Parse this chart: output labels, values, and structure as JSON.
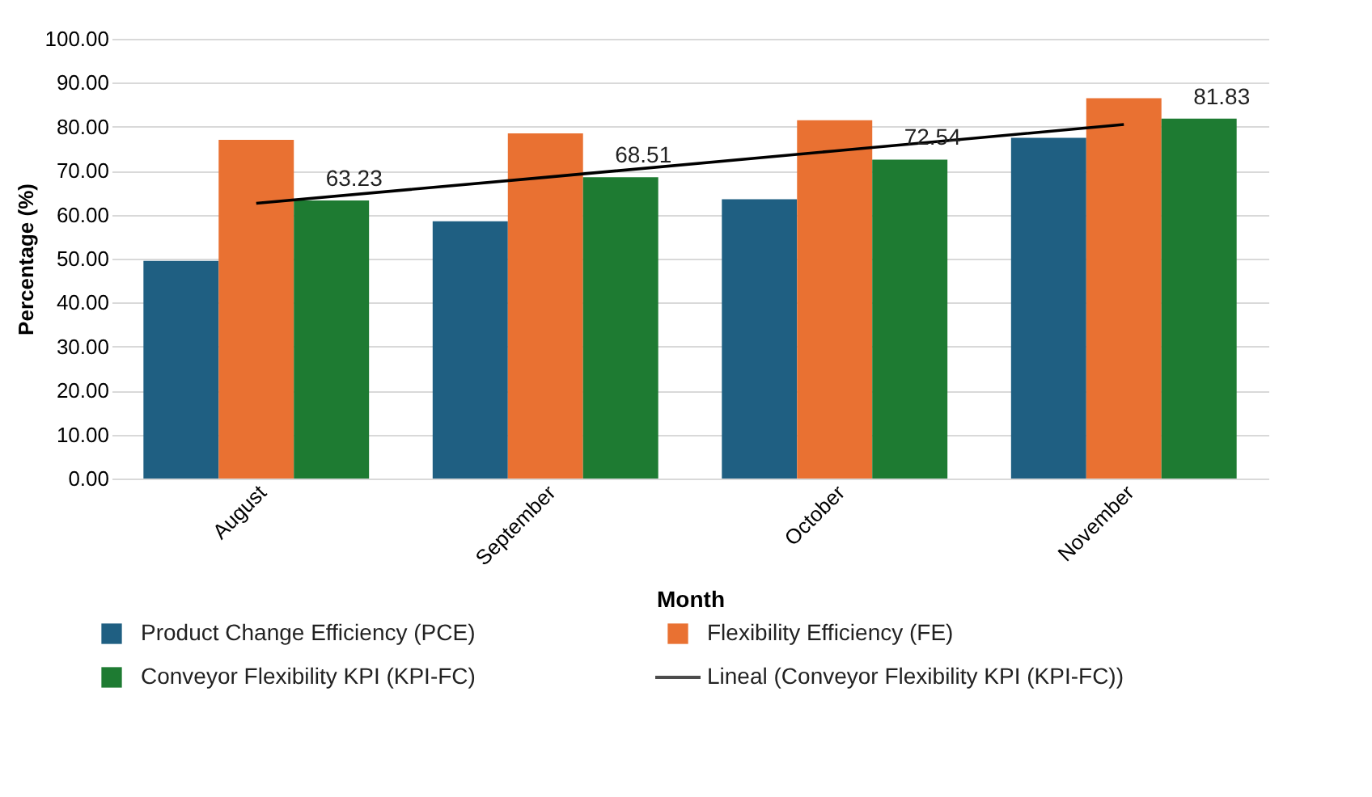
{
  "chart_data": {
    "type": "bar",
    "xlabel": "Month",
    "ylabel": "Percentage (%)",
    "categories": [
      "August",
      "September",
      "October",
      "November"
    ],
    "series": [
      {
        "name": "Product Change Efficiency (PCE)",
        "color": "#1f5f82",
        "values": [
          49.5,
          58.5,
          63.5,
          77.5
        ]
      },
      {
        "name": "Flexibility Efficiency (FE)",
        "color": "#e97132",
        "values": [
          77.0,
          78.5,
          81.5,
          86.5
        ]
      },
      {
        "name": "Conveyor Flexibility KPI (KPI-FC)",
        "color": "#1e7b32",
        "values": [
          63.23,
          68.51,
          72.54,
          81.83
        ],
        "value_labels": [
          "63.23",
          "68.51",
          "72.54",
          "81.83"
        ]
      },
      {
        "name": "Lineal (Conveyor Flexibility KPI (KPI-FC))",
        "type": "line",
        "color": "#000000",
        "values": [
          62.6,
          68.5,
          74.5,
          80.5
        ]
      }
    ],
    "ylim": [
      0,
      100
    ],
    "yticks": [
      {
        "value": 0,
        "label": "0.00"
      },
      {
        "value": 10,
        "label": "10.00"
      },
      {
        "value": 20,
        "label": "20.00"
      },
      {
        "value": 30,
        "label": "30.00"
      },
      {
        "value": 40,
        "label": "40.00"
      },
      {
        "value": 50,
        "label": "50.00"
      },
      {
        "value": 60,
        "label": "60.00"
      },
      {
        "value": 70,
        "label": "70.00"
      },
      {
        "value": 80,
        "label": "80.00"
      },
      {
        "value": 90,
        "label": "90.00"
      },
      {
        "value": 100,
        "label": "100.00"
      }
    ],
    "grid": "y",
    "legend": "bottom"
  }
}
